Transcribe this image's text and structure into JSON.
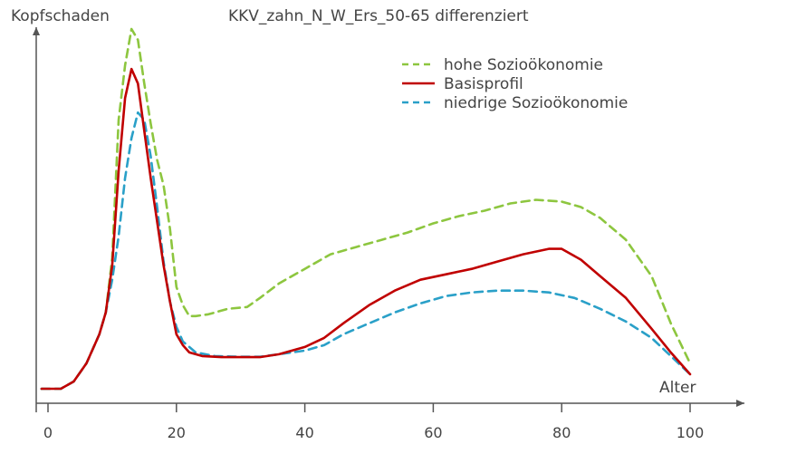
{
  "chart_data": {
    "type": "line",
    "title": "KKV_zahn_N_W_Ers_50-65 differenziert",
    "xlabel": "Alter",
    "ylabel": "Kopfschaden",
    "xlim": [
      -1,
      108
    ],
    "ylim": [
      0,
      1.0
    ],
    "x_ticks": [
      0,
      20,
      40,
      60,
      80,
      100
    ],
    "x_tick_labels": [
      "0",
      "20",
      "40",
      "60",
      "80",
      "100"
    ],
    "y_ticks_shown": false,
    "grid": false,
    "legend_position": "top-right",
    "series": [
      {
        "name": "hohe Sozioökonomie",
        "color": "#8dc63f",
        "dash": "dashed",
        "points": [
          [
            -1,
            0.0
          ],
          [
            2,
            0.0
          ],
          [
            4,
            0.02
          ],
          [
            6,
            0.07
          ],
          [
            8,
            0.15
          ],
          [
            9,
            0.21
          ],
          [
            10,
            0.36
          ],
          [
            11,
            0.74
          ],
          [
            12,
            0.89
          ],
          [
            13,
            0.99
          ],
          [
            14,
            0.96
          ],
          [
            15,
            0.84
          ],
          [
            16,
            0.73
          ],
          [
            17,
            0.63
          ],
          [
            18,
            0.56
          ],
          [
            19,
            0.44
          ],
          [
            20,
            0.28
          ],
          [
            21,
            0.23
          ],
          [
            22,
            0.2
          ],
          [
            23,
            0.2
          ],
          [
            25,
            0.205
          ],
          [
            28,
            0.22
          ],
          [
            31,
            0.225
          ],
          [
            33,
            0.25
          ],
          [
            36,
            0.29
          ],
          [
            40,
            0.33
          ],
          [
            44,
            0.37
          ],
          [
            48,
            0.39
          ],
          [
            52,
            0.41
          ],
          [
            56,
            0.43
          ],
          [
            60,
            0.455
          ],
          [
            64,
            0.475
          ],
          [
            68,
            0.49
          ],
          [
            72,
            0.51
          ],
          [
            76,
            0.52
          ],
          [
            80,
            0.515
          ],
          [
            83,
            0.5
          ],
          [
            86,
            0.47
          ],
          [
            90,
            0.41
          ],
          [
            94,
            0.31
          ],
          [
            97,
            0.18
          ],
          [
            100,
            0.07
          ]
        ]
      },
      {
        "name": "Basisprofil",
        "color": "#c00000",
        "dash": "solid",
        "points": [
          [
            -1,
            0.0
          ],
          [
            2,
            0.0
          ],
          [
            4,
            0.02
          ],
          [
            6,
            0.07
          ],
          [
            8,
            0.15
          ],
          [
            9,
            0.21
          ],
          [
            10,
            0.34
          ],
          [
            11,
            0.6
          ],
          [
            12,
            0.8
          ],
          [
            13,
            0.88
          ],
          [
            14,
            0.84
          ],
          [
            15,
            0.71
          ],
          [
            16,
            0.58
          ],
          [
            17,
            0.46
          ],
          [
            18,
            0.34
          ],
          [
            19,
            0.24
          ],
          [
            20,
            0.15
          ],
          [
            21,
            0.12
          ],
          [
            22,
            0.1
          ],
          [
            24,
            0.09
          ],
          [
            27,
            0.087
          ],
          [
            30,
            0.087
          ],
          [
            33,
            0.087
          ],
          [
            36,
            0.095
          ],
          [
            40,
            0.115
          ],
          [
            43,
            0.14
          ],
          [
            46,
            0.18
          ],
          [
            50,
            0.23
          ],
          [
            54,
            0.27
          ],
          [
            58,
            0.3
          ],
          [
            62,
            0.315
          ],
          [
            66,
            0.33
          ],
          [
            70,
            0.35
          ],
          [
            74,
            0.37
          ],
          [
            78,
            0.385
          ],
          [
            80,
            0.385
          ],
          [
            83,
            0.355
          ],
          [
            86,
            0.31
          ],
          [
            90,
            0.25
          ],
          [
            94,
            0.165
          ],
          [
            97,
            0.1
          ],
          [
            100,
            0.04
          ]
        ]
      },
      {
        "name": "niedrige Sozioökonomie",
        "color": "#2aa0c8",
        "dash": "dashed",
        "points": [
          [
            -1,
            0.0
          ],
          [
            2,
            0.0
          ],
          [
            4,
            0.02
          ],
          [
            6,
            0.07
          ],
          [
            8,
            0.15
          ],
          [
            9,
            0.21
          ],
          [
            10,
            0.3
          ],
          [
            11,
            0.42
          ],
          [
            12,
            0.58
          ],
          [
            13,
            0.69
          ],
          [
            14,
            0.76
          ],
          [
            15,
            0.74
          ],
          [
            16,
            0.64
          ],
          [
            17,
            0.5
          ],
          [
            18,
            0.35
          ],
          [
            19,
            0.24
          ],
          [
            20,
            0.17
          ],
          [
            21,
            0.13
          ],
          [
            23,
            0.1
          ],
          [
            26,
            0.09
          ],
          [
            30,
            0.088
          ],
          [
            33,
            0.088
          ],
          [
            36,
            0.095
          ],
          [
            40,
            0.105
          ],
          [
            43,
            0.12
          ],
          [
            46,
            0.15
          ],
          [
            50,
            0.18
          ],
          [
            54,
            0.21
          ],
          [
            58,
            0.235
          ],
          [
            62,
            0.255
          ],
          [
            66,
            0.265
          ],
          [
            70,
            0.27
          ],
          [
            74,
            0.27
          ],
          [
            78,
            0.265
          ],
          [
            82,
            0.25
          ],
          [
            86,
            0.22
          ],
          [
            90,
            0.185
          ],
          [
            94,
            0.14
          ],
          [
            97,
            0.09
          ],
          [
            100,
            0.04
          ]
        ]
      }
    ]
  }
}
